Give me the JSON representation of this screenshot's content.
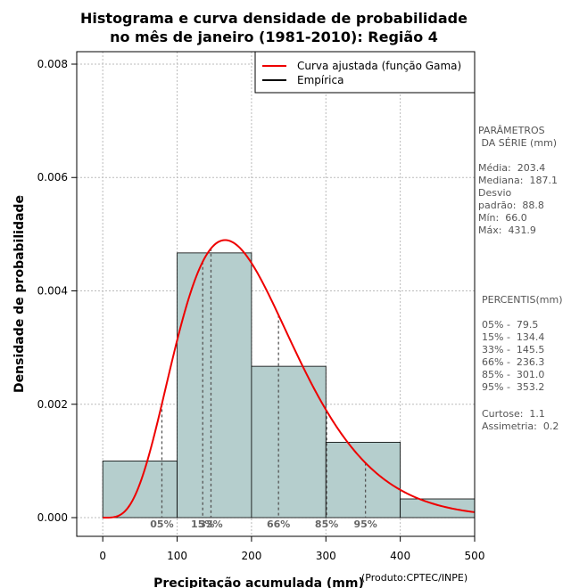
{
  "chart_data": {
    "type": "bar",
    "title_lines": [
      "Histograma e curva densidade de probabilidade",
      "no mês de janeiro (1981-2010): Região 4"
    ],
    "xlabel": "Precipitação acumulada (mm)",
    "ylabel": "Densidade de probabilidade",
    "credit": "(Produto:CPTEC/INPE)",
    "xlim": [
      -35,
      500
    ],
    "ylim": [
      -0.00033,
      0.00822
    ],
    "x_ticks": [
      0,
      100,
      200,
      300,
      400,
      500
    ],
    "y_ticks": [
      0.0,
      0.002,
      0.004,
      0.006,
      0.008
    ],
    "y_tick_labels": [
      "0.000",
      "0.002",
      "0.004",
      "0.006",
      "0.008"
    ],
    "grid": true,
    "bin_edges": [
      0,
      100,
      200,
      300,
      400,
      500
    ],
    "densities": [
      0.001,
      0.00467,
      0.00267,
      0.00133,
      0.00033
    ],
    "bar_color": "#b5cecd",
    "curve": {
      "name": "Curva ajustada (função Gama)",
      "color": "#ee0000",
      "shape": 5.24,
      "scale": 38.8
    },
    "legend": [
      {
        "label": "Curva ajustada (função Gama)",
        "color": "#ee0000"
      },
      {
        "label": "Empírica",
        "color": "#000000"
      }
    ],
    "legend_position": "top-right",
    "percentiles": [
      {
        "label": "05%",
        "value": 79.5
      },
      {
        "label": "15%",
        "value": 134.4
      },
      {
        "label": "33%",
        "value": 145.5
      },
      {
        "label": "66%",
        "value": 236.3
      },
      {
        "label": "85%",
        "value": 301.0
      },
      {
        "label": "95%",
        "value": 353.2
      }
    ]
  },
  "params_text": "PARÂMETROS\n DA SÉRIE (mm)\n\nMédia:  203.4\nMediana:  187.1\nDesvio\npadrão:  88.8\nMín:  66.0\nMáx:  431.9",
  "percentis_text": "PERCENTIS(mm)\n\n05% -  79.5\n15% -  134.4\n33% -  145.5\n66% -  236.3\n85% -  301.0\n95% -  353.2",
  "stats_text": "Curtose:  1.1\nAssimetria:  0.2"
}
